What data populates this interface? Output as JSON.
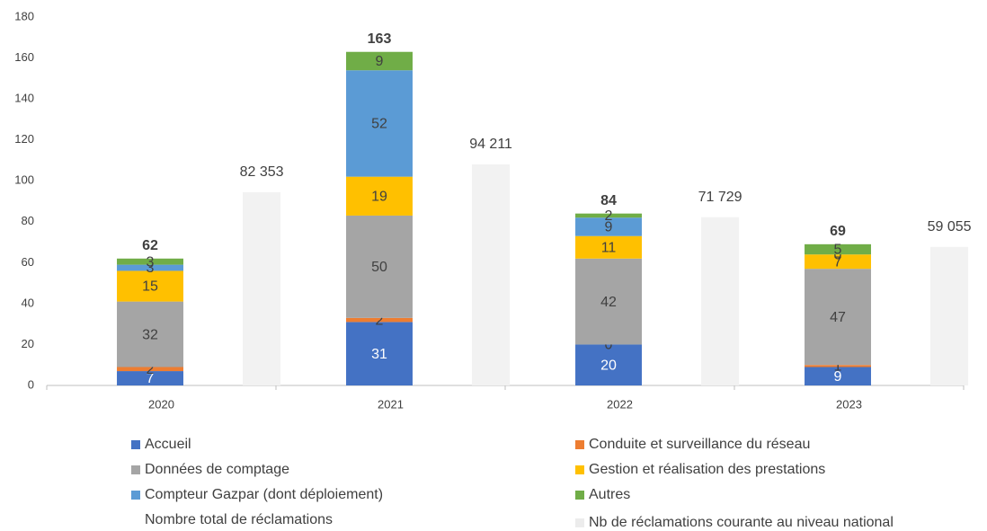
{
  "chart_data": {
    "type": "bar",
    "stacked": true,
    "categories": [
      "2020",
      "2021",
      "2022",
      "2023"
    ],
    "series": [
      {
        "name": "Accueil",
        "color": "#4472c4",
        "values": [
          7,
          31,
          20,
          9
        ]
      },
      {
        "name": "Conduite et surveillance du réseau",
        "color": "#ed7d31",
        "values": [
          2,
          2,
          0,
          1
        ]
      },
      {
        "name": "Données de comptage",
        "color": "#a5a5a5",
        "values": [
          32,
          50,
          42,
          47
        ]
      },
      {
        "name": "Gestion et réalisation des prestations",
        "color": "#ffc000",
        "values": [
          15,
          19,
          11,
          7
        ]
      },
      {
        "name": "Compteur Gazpar (dont déploiement)",
        "color": "#5b9bd5",
        "values": [
          3,
          52,
          9,
          0
        ]
      },
      {
        "name": "Autres",
        "color": "#70ad47",
        "values": [
          3,
          9,
          2,
          5
        ]
      },
      {
        "name": "Nombre total de réclamations",
        "type": "label",
        "values": [
          62,
          163,
          84,
          69
        ]
      },
      {
        "name": "Nb de réclamations courante au niveau national",
        "color": "#f2f2f2",
        "axis": "y2",
        "values": [
          82353,
          94211,
          71729,
          59055
        ],
        "value_labels": [
          "82 353",
          "94 211",
          "71 729",
          "59 055"
        ]
      }
    ],
    "ylim": [
      0,
      180
    ],
    "yticks": [
      0,
      20,
      40,
      60,
      80,
      100,
      120,
      140,
      160,
      180
    ],
    "y2lim": [
      0,
      157000
    ],
    "grid": false
  }
}
